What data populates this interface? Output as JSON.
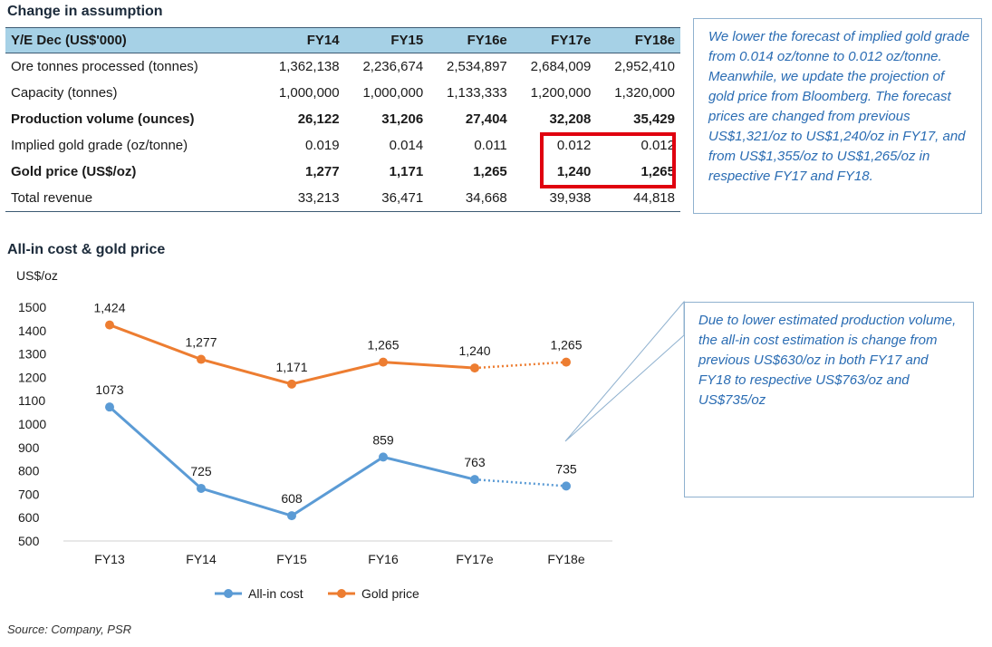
{
  "table": {
    "title": "Change in assumption",
    "headers": [
      "Y/E Dec (US$'000)",
      "FY14",
      "FY15",
      "FY16e",
      "FY17e",
      "FY18e"
    ],
    "rows": [
      {
        "label": "Ore tonnes processed (tonnes)",
        "bold": false,
        "values": [
          "1,362,138",
          "2,236,674",
          "2,534,897",
          "2,684,009",
          "2,952,410"
        ]
      },
      {
        "label": "Capacity (tonnes)",
        "bold": false,
        "values": [
          "1,000,000",
          "1,000,000",
          "1,133,333",
          "1,200,000",
          "1,320,000"
        ]
      },
      {
        "label": "Production volume (ounces)",
        "bold": true,
        "values": [
          "26,122",
          "31,206",
          "27,404",
          "32,208",
          "35,429"
        ]
      },
      {
        "label": "Implied gold grade (oz/tonne)",
        "bold": false,
        "values": [
          "0.019",
          "0.014",
          "0.011",
          "0.012",
          "0.012"
        ]
      },
      {
        "label": "Gold price (US$/oz)",
        "bold": true,
        "values": [
          "1,277",
          "1,171",
          "1,265",
          "1,240",
          "1,265"
        ]
      },
      {
        "label": "Total revenue",
        "bold": false,
        "values": [
          "33,213",
          "36,471",
          "34,668",
          "39,938",
          "44,818"
        ]
      }
    ],
    "highlight_color": "#e0000f"
  },
  "callouts": {
    "table_note": "We lower the forecast of implied gold grade from 0.014 oz/tonne to 0.012 oz/tonne. Meanwhile, we update the projection of gold price from Bloomberg. The forecast prices are changed from previous US$1,321/oz to US$1,240/oz in FY17, and from US$1,355/oz to US$1,265/oz in respective FY17 and FY18.",
    "chart_note": "Due to lower estimated production volume, the all-in cost estimation is change from previous US$630/oz in both FY17 and FY18 to respective US$763/oz and US$735/oz"
  },
  "chart_data": {
    "type": "line",
    "title": "All-in cost & gold price",
    "ylabel": "US$/oz",
    "categories": [
      "FY13",
      "FY14",
      "FY15",
      "FY16",
      "FY17e",
      "FY18e"
    ],
    "ylim": [
      500,
      1500
    ],
    "yticks": [
      "500",
      "600",
      "700",
      "800",
      "900",
      "1000",
      "1100",
      "1200",
      "1300",
      "1400",
      "1500"
    ],
    "grid": false,
    "legend_position": "bottom",
    "series": [
      {
        "name": "All-in cost",
        "color": "#5b9bd5",
        "values": [
          1073,
          725,
          608,
          859,
          763,
          735
        ],
        "labels": [
          "1073",
          "725",
          "608",
          "859",
          "763",
          "735"
        ]
      },
      {
        "name": "Gold price",
        "color": "#ed7d31",
        "values": [
          1424,
          1277,
          1171,
          1265,
          1240,
          1265
        ],
        "labels": [
          "1,424",
          "1,277",
          "1,171",
          "1,265",
          "1,240",
          "1,265"
        ]
      }
    ],
    "forecast_segment": "dotted between FY17e and FY18e"
  },
  "source": "Source: Company, PSR"
}
